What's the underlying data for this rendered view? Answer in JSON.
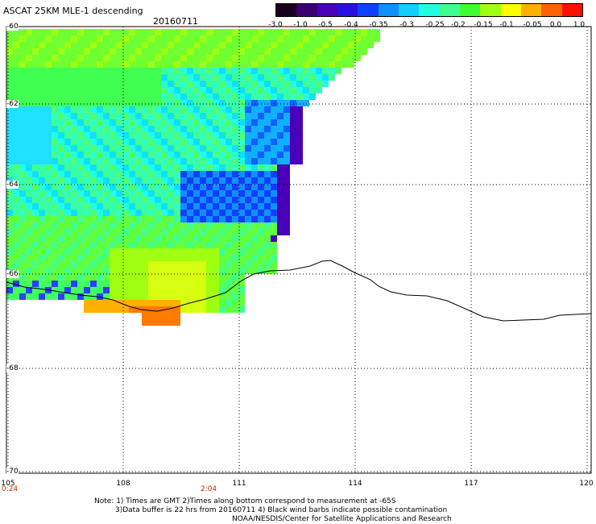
{
  "header": {
    "title": "ASCAT 25KM MLE-1 descending",
    "date": "20160711"
  },
  "colorbar": {
    "tick_labels": [
      "-3.0",
      "-1.0",
      "-0.5",
      "-0.4",
      "-0.35",
      "-0.3",
      "-0.25",
      "-0.2",
      "-0.15",
      "-0.1",
      "-0.05",
      "0.0",
      "1.0"
    ],
    "colors": [
      "#1a0020",
      "#3a0070",
      "#4a00b8",
      "#2a10e0",
      "#1040ff",
      "#1090ff",
      "#10d0ff",
      "#20ffe0",
      "#40ff90",
      "#40ff30",
      "#a0ff10",
      "#ffff00",
      "#ffb000",
      "#ff6000",
      "#ff1000"
    ]
  },
  "map": {
    "lat_labels": [
      "-60",
      "-62",
      "-64",
      "-66",
      "-68",
      "-70"
    ],
    "lon_labels": [
      "105",
      "108",
      "111",
      "114",
      "117",
      "120"
    ],
    "time_labels": [
      "0:24",
      "2:04"
    ],
    "coast_color": "#000000",
    "grid_color": "#000000"
  },
  "notes": {
    "line1": "Note: 1) Times are GMT 2)Times along bottom correspond to measurement at -65S",
    "line2": "3)Data buffer is 22 hrs from 20160711 4) Black wind barbs indicate possible contamination",
    "line3": "NOAA/NESDIS/Center for Satellite Applications and Research"
  }
}
